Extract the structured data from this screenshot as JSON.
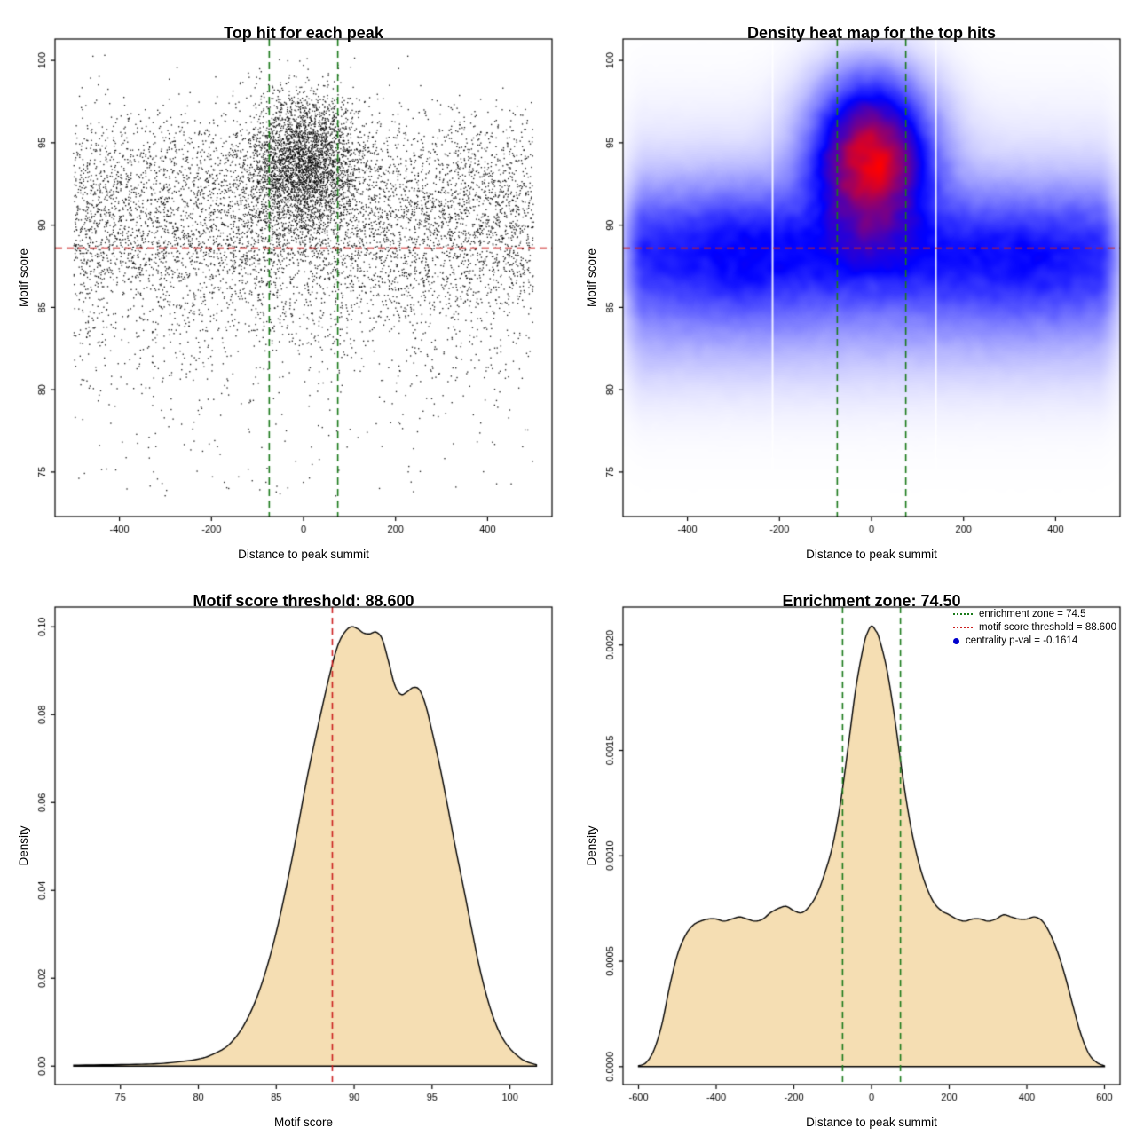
{
  "page": {
    "background": "#ffffff"
  },
  "chart_data": [
    {
      "id": "top-hits-scatter",
      "type": "scatter",
      "title": "Top hit for each peak",
      "xlabel": "Distance to peak summit",
      "ylabel": "Motif score",
      "xlim": [
        -540,
        540
      ],
      "ylim": [
        72.3,
        101.3
      ],
      "xticks": [
        -400,
        -200,
        0,
        200,
        400
      ],
      "xtick_labels": [
        "-400",
        "-200",
        "0",
        "200",
        "400"
      ],
      "yticks": [
        75,
        80,
        85,
        90,
        95,
        100
      ],
      "ytick_labels": [
        "75",
        "80",
        "85",
        "90",
        "95",
        "100"
      ],
      "point_color": "#000000",
      "n_background": 6800,
      "n_cluster": 3200,
      "n_low_tail": 130,
      "cluster_x_sd": 60,
      "cluster_y_mean": 93.7,
      "cluster_y_sd": 2.1,
      "enrichment_zone": [
        -74.5,
        74.5
      ],
      "motif_score_threshold": 88.6,
      "zone_line_color": "#1a7a1a",
      "threshold_line_color": "#cc2020",
      "seed": 20
    },
    {
      "id": "top-hits-heatmap",
      "type": "heatmap",
      "title": "Density heat map for the top hits",
      "xlabel": "Distance to peak summit",
      "ylabel": "Motif score",
      "xlim": [
        -540,
        540
      ],
      "ylim": [
        72.3,
        101.3
      ],
      "xticks": [
        -400,
        -200,
        0,
        200,
        400
      ],
      "xtick_labels": [
        "-400",
        "-200",
        "0",
        "200",
        "400"
      ],
      "yticks": [
        75,
        80,
        85,
        90,
        95,
        100
      ],
      "ytick_labels": [
        "75",
        "80",
        "85",
        "90",
        "95",
        "100"
      ],
      "colors_low_to_high": [
        "#ffffff",
        "#0000ff",
        "#ff0000"
      ],
      "white_gaps_x": [
        -215,
        140
      ],
      "enrichment_zone": [
        -74.5,
        74.5
      ],
      "motif_score_threshold": 88.6,
      "zone_line_color": "#1a7a1a",
      "threshold_line_color": "#cc2020",
      "seed": 11
    },
    {
      "id": "motif-score-density",
      "type": "area",
      "title": "Motif score threshold: 88.600",
      "xlabel": "Motif score",
      "ylabel": "Density",
      "xlim": [
        70.8,
        102.7
      ],
      "ylim": [
        -0.0042,
        0.1045
      ],
      "xticks": [
        75,
        80,
        85,
        90,
        95,
        100
      ],
      "xtick_labels": [
        "75",
        "80",
        "85",
        "90",
        "95",
        "100"
      ],
      "yticks": [
        0,
        0.02,
        0.04,
        0.06,
        0.08,
        0.1
      ],
      "ytick_labels": [
        "0.00",
        "0.02",
        "0.04",
        "0.06",
        "0.08",
        "0.10"
      ],
      "fill": "#f5deb3",
      "line": "#000000",
      "threshold": 88.6,
      "threshold_color": "#cc2020",
      "curve": [
        [
          72,
          0.0002
        ],
        [
          76,
          0.0004
        ],
        [
          78,
          0.0007
        ],
        [
          80,
          0.0016
        ],
        [
          81,
          0.0028
        ],
        [
          82,
          0.005
        ],
        [
          83,
          0.0098
        ],
        [
          84,
          0.018
        ],
        [
          85,
          0.0305
        ],
        [
          86,
          0.047
        ],
        [
          87,
          0.066
        ],
        [
          88,
          0.0825
        ],
        [
          88.6,
          0.0915
        ],
        [
          89,
          0.0962
        ],
        [
          89.4,
          0.0988
        ],
        [
          89.8,
          0.1
        ],
        [
          90.2,
          0.0996
        ],
        [
          90.6,
          0.0986
        ],
        [
          91,
          0.0984
        ],
        [
          91.4,
          0.0988
        ],
        [
          91.8,
          0.0972
        ],
        [
          92.2,
          0.0922
        ],
        [
          92.6,
          0.0868
        ],
        [
          93,
          0.0846
        ],
        [
          93.4,
          0.0852
        ],
        [
          93.8,
          0.0862
        ],
        [
          94.2,
          0.0856
        ],
        [
          94.6,
          0.082
        ],
        [
          95,
          0.0762
        ],
        [
          95.5,
          0.0682
        ],
        [
          96,
          0.0592
        ],
        [
          96.5,
          0.0498
        ],
        [
          97,
          0.041
        ],
        [
          97.5,
          0.032
        ],
        [
          98,
          0.0232
        ],
        [
          98.5,
          0.016
        ],
        [
          99,
          0.0104
        ],
        [
          99.5,
          0.0065
        ],
        [
          100,
          0.004
        ],
        [
          100.5,
          0.0023
        ],
        [
          101,
          0.0011
        ],
        [
          101.7,
          0.0003
        ]
      ]
    },
    {
      "id": "distance-density",
      "type": "area",
      "title": "Enrichment zone: 74.50",
      "xlabel": "Distance to peak summit",
      "ylabel": "Density",
      "xlim": [
        -640,
        640
      ],
      "ylim": [
        -8.5e-05,
        0.00218
      ],
      "xticks": [
        -600,
        -400,
        -200,
        0,
        200,
        400,
        600
      ],
      "xtick_labels": [
        "-600",
        "-400",
        "-200",
        "0",
        "200",
        "400",
        "600"
      ],
      "yticks": [
        0,
        0.0005,
        0.001,
        0.0015,
        0.002
      ],
      "ytick_labels": [
        "0.0000",
        "0.0005",
        "0.0010",
        "0.0015",
        "0.0020"
      ],
      "fill": "#f5deb3",
      "line": "#000000",
      "zone": [
        -74.5,
        74.5
      ],
      "zone_color": "#1a7a1a",
      "curve": [
        [
          -600,
          4e-06
        ],
        [
          -580,
          2e-05
        ],
        [
          -560,
          8e-05
        ],
        [
          -540,
          0.0002
        ],
        [
          -520,
          0.00038
        ],
        [
          -500,
          0.00053
        ],
        [
          -480,
          0.00062
        ],
        [
          -460,
          0.00067
        ],
        [
          -440,
          0.00069
        ],
        [
          -420,
          0.0007
        ],
        [
          -400,
          0.0007
        ],
        [
          -380,
          0.00069
        ],
        [
          -360,
          0.0007
        ],
        [
          -340,
          0.00071
        ],
        [
          -320,
          0.0007
        ],
        [
          -300,
          0.00069
        ],
        [
          -280,
          0.0007
        ],
        [
          -260,
          0.00073
        ],
        [
          -240,
          0.00075
        ],
        [
          -220,
          0.00076
        ],
        [
          -200,
          0.00074
        ],
        [
          -180,
          0.00073
        ],
        [
          -160,
          0.00076
        ],
        [
          -140,
          0.00082
        ],
        [
          -120,
          0.00092
        ],
        [
          -100,
          0.00105
        ],
        [
          -80,
          0.00125
        ],
        [
          -60,
          0.00152
        ],
        [
          -40,
          0.0018
        ],
        [
          -20,
          0.002
        ],
        [
          -10,
          0.00206
        ],
        [
          0,
          0.00209
        ],
        [
          10,
          0.00207
        ],
        [
          20,
          0.00203
        ],
        [
          40,
          0.00188
        ],
        [
          60,
          0.00165
        ],
        [
          80,
          0.00138
        ],
        [
          100,
          0.00115
        ],
        [
          120,
          0.00098
        ],
        [
          140,
          0.00086
        ],
        [
          160,
          0.00078
        ],
        [
          180,
          0.00074
        ],
        [
          200,
          0.00072
        ],
        [
          220,
          0.0007
        ],
        [
          240,
          0.00069
        ],
        [
          260,
          0.0007
        ],
        [
          280,
          0.0007
        ],
        [
          300,
          0.00069
        ],
        [
          320,
          0.0007
        ],
        [
          340,
          0.00072
        ],
        [
          360,
          0.00071
        ],
        [
          380,
          0.0007
        ],
        [
          400,
          0.0007
        ],
        [
          420,
          0.00071
        ],
        [
          440,
          0.00069
        ],
        [
          460,
          0.00063
        ],
        [
          480,
          0.00054
        ],
        [
          500,
          0.00042
        ],
        [
          520,
          0.00028
        ],
        [
          540,
          0.00015
        ],
        [
          560,
          6e-05
        ],
        [
          580,
          2e-05
        ],
        [
          600,
          4e-06
        ]
      ],
      "legend": {
        "items": [
          {
            "label": "enrichment zone = 74.5",
            "color": "#1a7a1a",
            "type": "dotted-line"
          },
          {
            "label": "motif score threshold = 88.600",
            "color": "#cc2020",
            "type": "dotted-line"
          },
          {
            "label": "centrality p-val = -0.1614",
            "color": "#0000cc",
            "type": "point"
          }
        ]
      }
    }
  ]
}
